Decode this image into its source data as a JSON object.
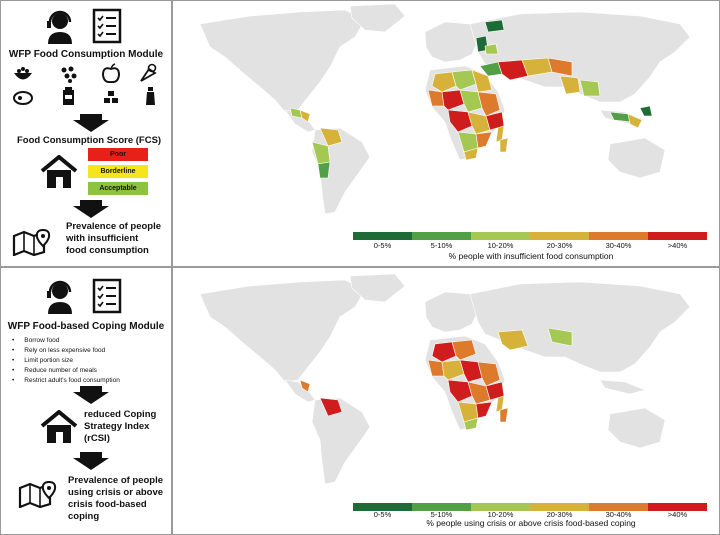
{
  "top": {
    "module_title": "WFP Food Consumption Module",
    "score_title": "Food Consumption Score (FCS)",
    "fcs_levels": [
      {
        "label": "Poor",
        "color": "#e8201a"
      },
      {
        "label": "Borderline",
        "color": "#f6e51a"
      },
      {
        "label": "Acceptable",
        "color": "#8dc33f"
      }
    ],
    "prevalence_lines": [
      "Prevalence of people",
      "with insufficient",
      "food consumption"
    ],
    "legend_title": "% people with insufficient food consumption"
  },
  "bottom": {
    "module_title": "WFP Food-based Coping Module",
    "strategies": [
      "Borrow food",
      "Rely on less expensive food",
      "Limit portion size",
      "Reduce number of meals",
      "Restrict adult's food consumption"
    ],
    "index_lines": [
      "reduced Coping",
      "Strategy Index",
      "(rCSI)"
    ],
    "prevalence_lines": [
      "Prevalence of people",
      "using crisis or above",
      "crisis food-based",
      "coping"
    ],
    "legend_title": "% people using crisis or above crisis food-based coping"
  },
  "legend": {
    "categories": [
      "0-5%",
      "5-10%",
      "10-20%",
      "20-30%",
      "30-40%",
      ">40%"
    ],
    "colors": [
      "#1f6b35",
      "#52a046",
      "#a5c853",
      "#d6b23a",
      "#de7a2b",
      "#cf1d1d"
    ]
  },
  "map": {
    "land_color": "#e2e2e2"
  }
}
